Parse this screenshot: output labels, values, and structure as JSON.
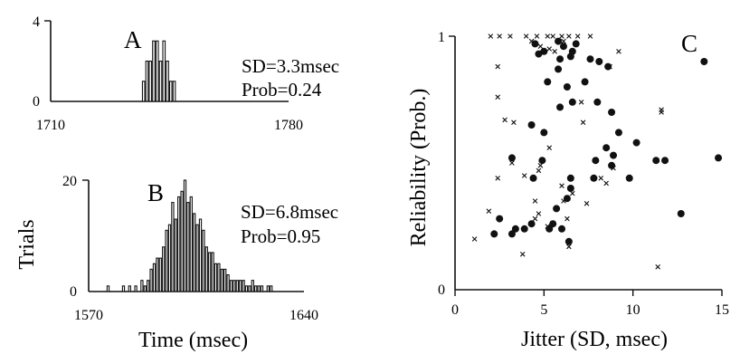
{
  "chart_data": [
    {
      "panel": "A",
      "type": "bar",
      "subtype": "histogram",
      "title": "A",
      "annotations": [
        "SD=3.3msec",
        "Prob=0.24"
      ],
      "xlabel": "",
      "ylabel": "",
      "xlim": [
        1710,
        1780
      ],
      "ylim": [
        0,
        4
      ],
      "xticks": [
        "1710",
        "1780"
      ],
      "yticks": [
        "0",
        "4"
      ],
      "bin_width_msec": 1,
      "bin_starts": [
        1737,
        1738,
        1739,
        1740,
        1741,
        1742,
        1743,
        1744,
        1745,
        1746
      ],
      "values": [
        1,
        2,
        2,
        3,
        3,
        2,
        3,
        2,
        1,
        1
      ]
    },
    {
      "panel": "B",
      "type": "bar",
      "subtype": "histogram",
      "title": "B",
      "annotations": [
        "SD=6.8msec",
        "Prob=0.95"
      ],
      "xlabel": "Time (msec)",
      "ylabel": "Trials",
      "xlim": [
        1570,
        1640
      ],
      "ylim": [
        0,
        20
      ],
      "xticks": [
        "1570",
        "1640"
      ],
      "yticks": [
        "0",
        "20"
      ],
      "bin_width_msec": 1,
      "bin_starts": [
        1576,
        1581,
        1583,
        1585,
        1587,
        1588,
        1589,
        1590,
        1591,
        1592,
        1593,
        1594,
        1595,
        1596,
        1597,
        1598,
        1599,
        1600,
        1601,
        1602,
        1603,
        1604,
        1605,
        1606,
        1607,
        1608,
        1609,
        1610,
        1611,
        1612,
        1613,
        1614,
        1615,
        1616,
        1617,
        1618,
        1619,
        1620,
        1621,
        1622,
        1623,
        1624,
        1625,
        1626,
        1628,
        1629
      ],
      "values": [
        1,
        1,
        1,
        1,
        2,
        1,
        2,
        4,
        5,
        6,
        6,
        8,
        11,
        12,
        16,
        13,
        17,
        18,
        20,
        16,
        17,
        14,
        12,
        13,
        11,
        8,
        7,
        7,
        5,
        5,
        4,
        4,
        3,
        2,
        2,
        2,
        2,
        2,
        1,
        1,
        2,
        1,
        1,
        1,
        1,
        1
      ]
    },
    {
      "panel": "C",
      "type": "scatter",
      "title": "C",
      "xlabel": "Jitter (SD, msec)",
      "ylabel": "Reliability (Prob.)",
      "xlim": [
        0,
        15
      ],
      "ylim": [
        0,
        1
      ],
      "xticks": [
        "0",
        "5",
        "10",
        "15"
      ],
      "yticks": [
        "0",
        "1"
      ],
      "grid": false,
      "legend": "none",
      "series": [
        {
          "marker": "filled-circle",
          "points": [
            [
              4.5,
              0.97
            ],
            [
              5.0,
              0.94
            ],
            [
              5.8,
              0.98
            ],
            [
              6.1,
              0.96
            ],
            [
              6.6,
              0.94
            ],
            [
              6.8,
              0.97
            ],
            [
              4.7,
              0.93
            ],
            [
              5.9,
              0.91
            ],
            [
              6.5,
              0.92
            ],
            [
              8.6,
              0.88
            ],
            [
              7.6,
              0.91
            ],
            [
              8.1,
              0.9
            ],
            [
              5.8,
              0.87
            ],
            [
              5.2,
              0.82
            ],
            [
              6.3,
              0.8
            ],
            [
              7.3,
              0.82
            ],
            [
              14.0,
              0.9
            ],
            [
              6.6,
              0.74
            ],
            [
              5.9,
              0.72
            ],
            [
              8.0,
              0.74
            ],
            [
              8.8,
              0.7
            ],
            [
              4.3,
              0.65
            ],
            [
              5.0,
              0.62
            ],
            [
              9.2,
              0.62
            ],
            [
              10.2,
              0.58
            ],
            [
              8.5,
              0.56
            ],
            [
              8.9,
              0.53
            ],
            [
              3.2,
              0.52
            ],
            [
              4.9,
              0.51
            ],
            [
              7.9,
              0.51
            ],
            [
              11.3,
              0.51
            ],
            [
              11.8,
              0.51
            ],
            [
              14.8,
              0.52
            ],
            [
              8.8,
              0.49
            ],
            [
              4.4,
              0.44
            ],
            [
              6.5,
              0.44
            ],
            [
              7.8,
              0.44
            ],
            [
              9.8,
              0.44
            ],
            [
              6.5,
              0.4
            ],
            [
              6.3,
              0.36
            ],
            [
              5.7,
              0.32
            ],
            [
              12.7,
              0.3
            ],
            [
              2.5,
              0.28
            ],
            [
              4.3,
              0.26
            ],
            [
              5.5,
              0.26
            ],
            [
              3.4,
              0.24
            ],
            [
              3.9,
              0.24
            ],
            [
              5.3,
              0.24
            ],
            [
              6.0,
              0.24
            ],
            [
              2.2,
              0.22
            ],
            [
              3.2,
              0.22
            ],
            [
              6.4,
              0.19
            ]
          ]
        },
        {
          "marker": "x",
          "points": [
            [
              2.0,
              1.0
            ],
            [
              2.5,
              1.0
            ],
            [
              3.1,
              1.0
            ],
            [
              4.0,
              1.0
            ],
            [
              4.6,
              1.0
            ],
            [
              5.2,
              1.0
            ],
            [
              5.5,
              1.0
            ],
            [
              6.0,
              1.0
            ],
            [
              6.4,
              1.0
            ],
            [
              6.9,
              1.0
            ],
            [
              7.6,
              1.0
            ],
            [
              4.3,
              0.98
            ],
            [
              4.8,
              0.96
            ],
            [
              5.3,
              0.95
            ],
            [
              6.1,
              0.98
            ],
            [
              5.6,
              0.94
            ],
            [
              9.2,
              0.94
            ],
            [
              2.4,
              0.88
            ],
            [
              8.7,
              0.88
            ],
            [
              2.4,
              0.76
            ],
            [
              7.1,
              0.74
            ],
            [
              11.6,
              0.7
            ],
            [
              11.6,
              0.71
            ],
            [
              2.8,
              0.67
            ],
            [
              3.3,
              0.66
            ],
            [
              7.2,
              0.66
            ],
            [
              5.3,
              0.56
            ],
            [
              3.2,
              0.5
            ],
            [
              4.8,
              0.49
            ],
            [
              2.4,
              0.44
            ],
            [
              8.2,
              0.44
            ],
            [
              4.7,
              0.47
            ],
            [
              3.9,
              0.45
            ],
            [
              8.9,
              0.48
            ],
            [
              8.5,
              0.42
            ],
            [
              6.0,
              0.41
            ],
            [
              4.5,
              0.35
            ],
            [
              6.6,
              0.38
            ],
            [
              6.1,
              0.35
            ],
            [
              7.4,
              0.34
            ],
            [
              4.7,
              0.3
            ],
            [
              1.9,
              0.31
            ],
            [
              6.3,
              0.28
            ],
            [
              4.5,
              0.28
            ],
            [
              5.2,
              0.25
            ],
            [
              1.1,
              0.2
            ],
            [
              3.8,
              0.14
            ],
            [
              6.4,
              0.17
            ],
            [
              11.4,
              0.09
            ]
          ]
        }
      ]
    }
  ]
}
